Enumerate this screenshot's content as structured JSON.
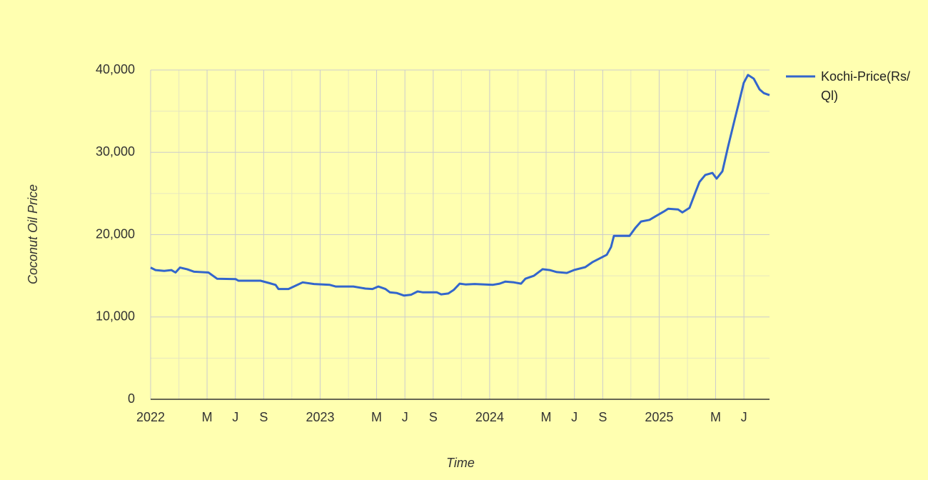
{
  "chart_data": {
    "type": "line",
    "x_label": "Time",
    "y_label": "Coconut Oil Price",
    "x": [
      2022.0,
      2022.029,
      2022.08,
      2022.122,
      2022.147,
      2022.173,
      2022.215,
      2022.257,
      2022.341,
      2022.392,
      2022.501,
      2022.518,
      2022.648,
      2022.703,
      2022.737,
      2022.754,
      2022.813,
      2022.855,
      2022.897,
      2022.964,
      2023.057,
      2023.091,
      2023.196,
      2023.267,
      2023.309,
      2023.343,
      2023.385,
      2023.411,
      2023.453,
      2023.495,
      2023.537,
      2023.575,
      2023.604,
      2023.688,
      2023.714,
      2023.756,
      2023.789,
      2023.823,
      2023.857,
      2023.912,
      2024.017,
      2024.059,
      2024.093,
      2024.143,
      2024.185,
      2024.211,
      2024.261,
      2024.312,
      2024.354,
      2024.396,
      2024.455,
      2024.497,
      2024.564,
      2024.606,
      2024.648,
      2024.691,
      2024.716,
      2024.733,
      2024.775,
      2024.825,
      2024.859,
      2024.893,
      2024.943,
      2024.977,
      2025.027,
      2025.053,
      2025.112,
      2025.137,
      2025.179,
      2025.213,
      2025.238,
      2025.272,
      2025.314,
      2025.339,
      2025.373,
      2025.406,
      2025.448,
      2025.474,
      2025.499,
      2025.524,
      2025.558,
      2025.592,
      2025.617,
      2025.651
    ],
    "series": [
      {
        "name": "Kochi-Price(Rs/Ql)",
        "color": "#3366cc",
        "values": [
          16000,
          15700,
          15600,
          15700,
          15400,
          16000,
          15800,
          15500,
          15400,
          14650,
          14600,
          14400,
          14400,
          14100,
          13900,
          13400,
          13400,
          13800,
          14200,
          14000,
          13900,
          13700,
          13700,
          13450,
          13400,
          13700,
          13400,
          13000,
          12900,
          12600,
          12700,
          13100,
          13000,
          13000,
          12750,
          12850,
          13300,
          14050,
          13950,
          14000,
          13900,
          14050,
          14300,
          14200,
          14050,
          14650,
          15000,
          15800,
          15700,
          15450,
          15350,
          15700,
          16050,
          16650,
          17100,
          17550,
          18500,
          19850,
          19850,
          19850,
          20800,
          21600,
          21800,
          22200,
          22800,
          23150,
          23050,
          22700,
          23250,
          25100,
          26400,
          27250,
          27500,
          26800,
          27700,
          30650,
          34200,
          36350,
          38450,
          39400,
          38950,
          37650,
          37200,
          36950
        ]
      }
    ],
    "xlim": [
      2022,
      2025.651
    ],
    "xticks": [
      2022,
      {
        "value": 2022.333,
        "label": "M"
      },
      {
        "value": 2022.5,
        "label": "J"
      },
      {
        "value": 2022.667,
        "label": "S"
      },
      2023,
      {
        "value": 2023.333,
        "label": "M"
      },
      {
        "value": 2023.5,
        "label": "J"
      },
      {
        "value": 2023.667,
        "label": "S"
      },
      2024,
      {
        "value": 2024.333,
        "label": "M"
      },
      {
        "value": 2024.5,
        "label": "J"
      },
      {
        "value": 2024.667,
        "label": "S"
      },
      2025,
      {
        "value": 2025.333,
        "label": "M"
      },
      {
        "value": 2025.5,
        "label": "J"
      }
    ],
    "xminorticks": [
      2022.167,
      2022.833,
      2023.167,
      2023.833,
      2024.167,
      2024.833,
      2025.167
    ],
    "ylim": [
      0,
      40000
    ],
    "yticks": [
      0,
      {
        "value": 10000,
        "label": "10,000"
      },
      {
        "value": 20000,
        "label": "20,000"
      },
      {
        "value": 30000,
        "label": "30,000"
      },
      {
        "value": 40000,
        "label": "40,000"
      }
    ],
    "yminorticks": [
      5000,
      15000,
      25000,
      35000
    ],
    "grid": true,
    "legend": "right"
  }
}
